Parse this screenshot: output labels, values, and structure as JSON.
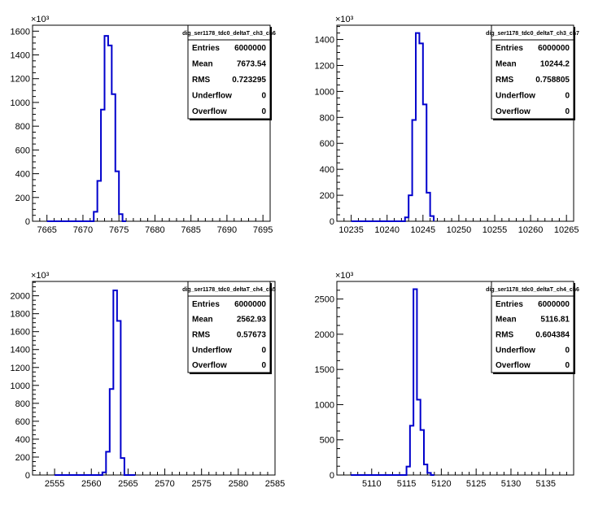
{
  "chart_data": [
    {
      "type": "histogram",
      "title": "",
      "exponent_label": "×10³",
      "xlim": [
        7663,
        7696
      ],
      "ylim": [
        0,
        1650
      ],
      "x_ticks": [
        7665,
        7670,
        7675,
        7680,
        7685,
        7690,
        7695
      ],
      "y_ticks": [
        0,
        200,
        400,
        600,
        800,
        1000,
        1200,
        1400,
        1600
      ],
      "bin_edges": [
        7671.5,
        7672,
        7672.5,
        7673,
        7673.5,
        7674,
        7674.5,
        7675,
        7675.5
      ],
      "bin_values": [
        80,
        340,
        940,
        1560,
        1480,
        1070,
        420,
        60
      ],
      "baseline_x": [
        7665,
        7676
      ],
      "stats": {
        "name": "dig_ser1178_tdc0_deltaT_ch3_ch6",
        "rows": [
          {
            "label": "Entries",
            "value": "6000000"
          },
          {
            "label": "Mean",
            "value": "7673.54"
          },
          {
            "label": "RMS",
            "value": "0.723295"
          },
          {
            "label": "Underflow",
            "value": "0"
          },
          {
            "label": "Overflow",
            "value": "0"
          }
        ]
      }
    },
    {
      "type": "histogram",
      "title": "",
      "exponent_label": "×10³",
      "xlim": [
        10233,
        10266
      ],
      "ylim": [
        0,
        1510
      ],
      "x_ticks": [
        10235,
        10240,
        10245,
        10250,
        10255,
        10260,
        10265
      ],
      "y_ticks": [
        0,
        200,
        400,
        600,
        800,
        1000,
        1200,
        1400
      ],
      "bin_edges": [
        10242.5,
        10243,
        10243.5,
        10244,
        10244.5,
        10245,
        10245.5,
        10246,
        10246.5
      ],
      "bin_values": [
        30,
        200,
        780,
        1450,
        1370,
        900,
        220,
        40
      ],
      "baseline_x": [
        10235,
        10246.5
      ],
      "stats": {
        "name": "dig_ser1178_tdc0_deltaT_ch3_ch7",
        "rows": [
          {
            "label": "Entries",
            "value": "6000000"
          },
          {
            "label": "Mean",
            "value": "10244.2"
          },
          {
            "label": "RMS",
            "value": "0.758805"
          },
          {
            "label": "Underflow",
            "value": "0"
          },
          {
            "label": "Overflow",
            "value": "0"
          }
        ]
      }
    },
    {
      "type": "histogram",
      "title": "",
      "exponent_label": "×10³",
      "xlim": [
        2552,
        2585
      ],
      "ylim": [
        0,
        2160
      ],
      "x_ticks": [
        2555,
        2560,
        2565,
        2570,
        2575,
        2580,
        2585
      ],
      "y_ticks": [
        0,
        200,
        400,
        600,
        800,
        1000,
        1200,
        1400,
        1600,
        1800,
        2000
      ],
      "bin_edges": [
        2561.5,
        2562,
        2562.5,
        2563,
        2563.5,
        2564,
        2564.5
      ],
      "bin_values": [
        30,
        260,
        960,
        2060,
        1720,
        190
      ],
      "baseline_x": [
        2555,
        2566
      ],
      "stats": {
        "name": "dig_ser1178_tdc0_deltaT_ch4_ch5",
        "rows": [
          {
            "label": "Entries",
            "value": "6000000"
          },
          {
            "label": "Mean",
            "value": "2562.93"
          },
          {
            "label": "RMS",
            "value": "0.57673"
          },
          {
            "label": "Underflow",
            "value": "0"
          },
          {
            "label": "Overflow",
            "value": "0"
          }
        ]
      }
    },
    {
      "type": "histogram",
      "title": "",
      "exponent_label": "×10³",
      "xlim": [
        5105,
        5139
      ],
      "ylim": [
        0,
        2750
      ],
      "x_ticks": [
        5110,
        5115,
        5120,
        5125,
        5130,
        5135
      ],
      "y_ticks": [
        0,
        500,
        1000,
        1500,
        2000,
        2500
      ],
      "bin_edges": [
        5115,
        5115.5,
        5116,
        5116.5,
        5117,
        5117.5,
        5118,
        5118.5
      ],
      "bin_values": [
        120,
        700,
        2640,
        1070,
        640,
        150,
        30
      ],
      "baseline_x": [
        5107,
        5119
      ],
      "stats": {
        "name": "dig_ser1178_tdc0_deltaT_ch4_ch6",
        "rows": [
          {
            "label": "Entries",
            "value": "6000000"
          },
          {
            "label": "Mean",
            "value": "5116.81"
          },
          {
            "label": "RMS",
            "value": "0.604384"
          },
          {
            "label": "Underflow",
            "value": "0"
          },
          {
            "label": "Overflow",
            "value": "0"
          }
        ]
      }
    }
  ],
  "colors": {
    "histogram_line": "#0000cc",
    "axis": "#000000",
    "background": "#ffffff"
  }
}
